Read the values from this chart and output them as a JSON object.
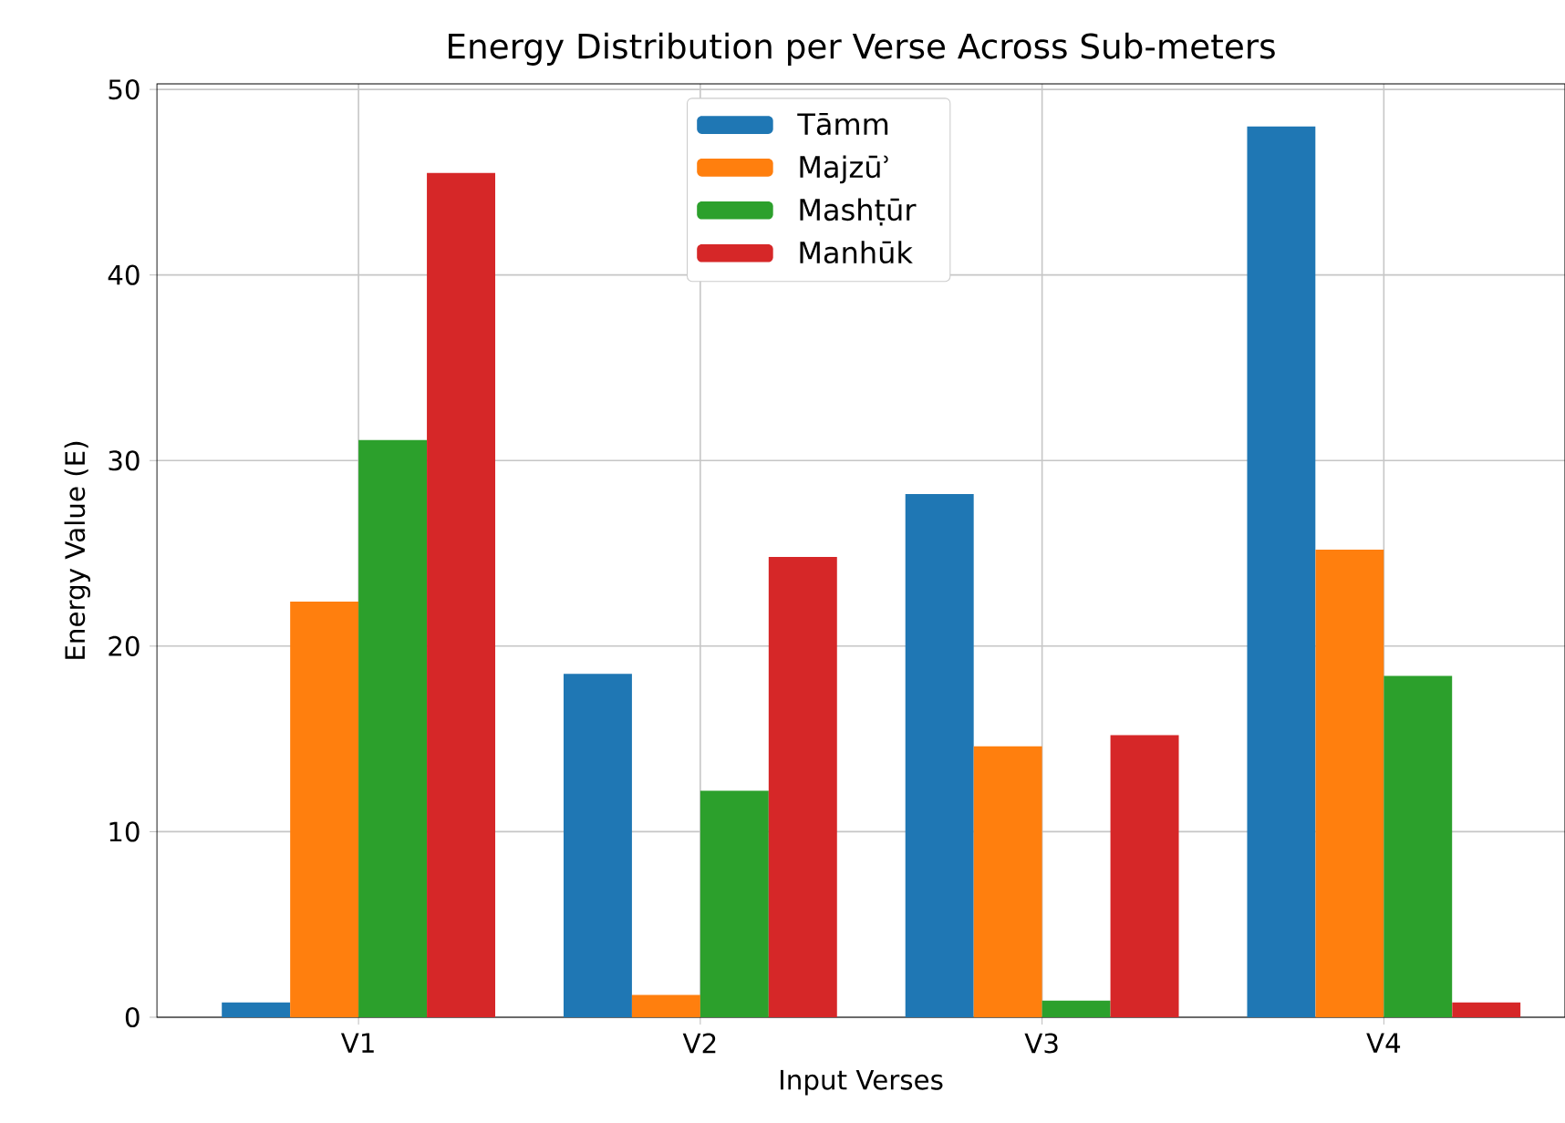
{
  "chart_data": {
    "type": "bar",
    "title": "Energy Distribution per Verse Across Sub-meters",
    "xlabel": "Input Verses",
    "ylabel": "Energy Value (E)",
    "categories": [
      "V1",
      "V2",
      "V3",
      "V4"
    ],
    "series": [
      {
        "name": "Tāmm",
        "color": "#1f77b4",
        "values": [
          0.8,
          18.5,
          28.2,
          48.0
        ]
      },
      {
        "name": "Majzūʾ",
        "color": "#ff7f0e",
        "values": [
          22.4,
          1.2,
          14.6,
          25.2
        ]
      },
      {
        "name": "Mashṭūr",
        "color": "#2ca02c",
        "values": [
          31.1,
          12.2,
          0.9,
          18.4
        ]
      },
      {
        "name": "Manhūk",
        "color": "#d62728",
        "values": [
          45.5,
          24.8,
          15.2,
          0.8
        ]
      }
    ],
    "ylim": [
      0,
      50.3
    ],
    "yticks": [
      0,
      10,
      20,
      30,
      40,
      50
    ],
    "grid": true,
    "legend": "top"
  }
}
